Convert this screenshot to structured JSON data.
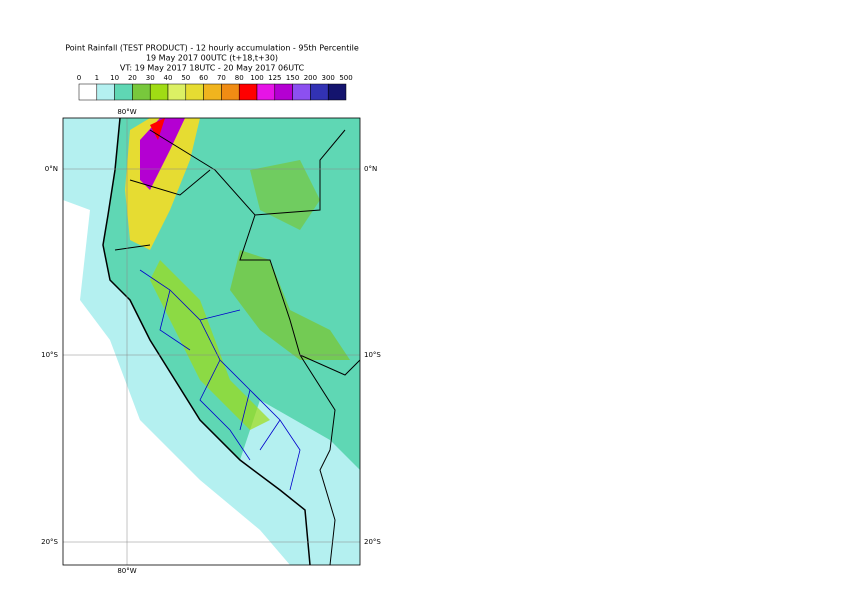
{
  "title": [
    "Point Rainfall (TEST PRODUCT) - 12 hourly accumulation - 95th Percentile",
    "19 May 2017 00UTC (t+18,t+30)",
    "VT: 19 May 2017 18UTC - 20 May 2017 06UTC"
  ],
  "colorbar": {
    "levels": [
      "0",
      "1",
      "10",
      "20",
      "30",
      "40",
      "50",
      "60",
      "70",
      "80",
      "100",
      "125",
      "150",
      "200",
      "300",
      "500"
    ],
    "colors": [
      "#ffffff",
      "#b4f0f0",
      "#5fd7b4",
      "#78c83c",
      "#a0dc14",
      "#dcf064",
      "#e6dc32",
      "#f0b41e",
      "#f08c14",
      "#ff0000",
      "#e614e6",
      "#b400d2",
      "#8c50f0",
      "#3232b4",
      "#14146e"
    ]
  },
  "map": {
    "lon_labels": [
      "80°W",
      "80°W"
    ],
    "lat_labels": [
      "0°N",
      "0°N",
      "10°S",
      "10°S",
      "20°S",
      "20°S"
    ]
  }
}
